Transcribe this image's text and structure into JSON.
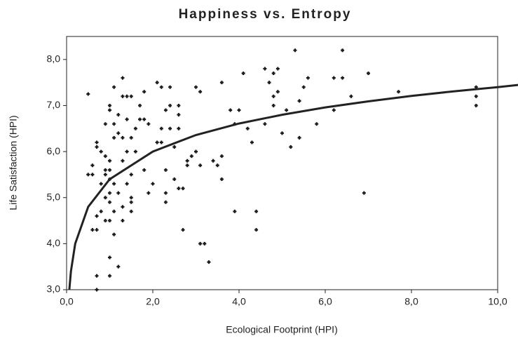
{
  "chart_data": {
    "type": "scatter",
    "title": "Happiness vs. Entropy",
    "x_label": "Ecological Footprint (HPI)",
    "y_label": "Life Satisfaction (HPI)",
    "color": "#1a1a1a",
    "xlim": [
      0,
      10
    ],
    "ylim": [
      3,
      8.5
    ],
    "xticks": [
      {
        "value": 0,
        "label": "0,0"
      },
      {
        "value": 2,
        "label": "2,0"
      },
      {
        "value": 4,
        "label": "4,0"
      },
      {
        "value": 6,
        "label": "6,0"
      },
      {
        "value": 8,
        "label": "8,0"
      },
      {
        "value": 10,
        "label": "10,0"
      }
    ],
    "yticks": [
      {
        "value": 3,
        "label": "3,0"
      },
      {
        "value": 4,
        "label": "4,0"
      },
      {
        "value": 5,
        "label": "5,0"
      },
      {
        "value": 6,
        "label": "6,0"
      },
      {
        "value": 7,
        "label": "7,0"
      },
      {
        "value": 8,
        "label": "8,0"
      }
    ],
    "grid": false,
    "x": [
      0.5,
      0.6,
      0.6,
      0.7,
      0.7,
      0.7,
      0.7,
      0.6,
      0.8,
      0.7,
      0.7,
      0.8,
      0.8,
      0.9,
      0.9,
      0.9,
      0.9,
      0.9,
      0.9,
      1.0,
      1.0,
      1.0,
      1.0,
      1.0,
      1.0,
      1.0,
      1.0,
      1.0,
      1.0,
      1.1,
      1.1,
      1.1,
      1.1,
      1.1,
      1.1,
      1.2,
      1.2,
      1.2,
      1.2,
      1.3,
      1.3,
      1.3,
      1.3,
      1.3,
      1.3,
      1.4,
      1.4,
      1.4,
      1.4,
      1.5,
      1.5,
      1.5,
      1.5,
      1.5,
      1.5,
      1.6,
      1.6,
      1.7,
      1.7,
      1.8,
      1.8,
      1.8,
      1.9,
      1.9,
      2.0,
      2.1,
      2.1,
      2.2,
      2.2,
      2.2,
      2.3,
      2.3,
      2.3,
      2.3,
      2.4,
      2.4,
      2.4,
      2.5,
      2.5,
      2.6,
      2.6,
      2.6,
      2.6,
      2.7,
      2.7,
      2.8,
      2.8,
      2.9,
      3.0,
      3.0,
      3.1,
      3.1,
      3.2,
      3.1,
      3.3,
      3.4,
      3.5,
      3.6,
      3.6,
      3.6,
      3.8,
      3.9,
      3.9,
      4.0,
      4.1,
      4.2,
      4.3,
      4.4,
      4.4,
      4.6,
      4.6,
      4.7,
      4.8,
      4.8,
      4.8,
      4.9,
      4.9,
      5.0,
      5.1,
      5.2,
      5.3,
      5.4,
      5.4,
      5.5,
      5.6,
      5.8,
      6.2,
      6.2,
      6.4,
      6.4,
      6.6,
      6.9,
      7.0,
      7.7,
      9.5,
      9.5,
      9.5,
      0.5
    ],
    "values": [
      5.5,
      5.5,
      5.7,
      6.2,
      6.1,
      4.6,
      4.3,
      4.3,
      4.7,
      3.3,
      3.0,
      6.0,
      5.3,
      5.9,
      6.6,
      5.6,
      5.5,
      5.0,
      4.5,
      5.8,
      5.6,
      5.4,
      5.1,
      4.9,
      4.5,
      3.7,
      3.3,
      6.9,
      7.0,
      7.4,
      6.6,
      6.3,
      5.3,
      4.7,
      4.2,
      6.8,
      6.4,
      3.5,
      5.1,
      7.6,
      7.2,
      6.3,
      5.8,
      4.8,
      4.5,
      7.2,
      6.7,
      6.0,
      5.3,
      7.2,
      6.3,
      5.5,
      5.0,
      4.9,
      4.7,
      6.5,
      6.0,
      7.0,
      6.7,
      7.3,
      5.6,
      6.7,
      5.1,
      6.6,
      5.3,
      6.2,
      7.5,
      7.4,
      6.5,
      6.2,
      6.9,
      5.6,
      5.1,
      4.9,
      7.4,
      7.0,
      6.5,
      5.4,
      6.1,
      7.0,
      6.8,
      6.5,
      5.2,
      5.2,
      4.3,
      5.7,
      5.8,
      5.9,
      7.4,
      6.0,
      7.3,
      4.0,
      4.0,
      5.7,
      3.6,
      5.8,
      5.7,
      7.5,
      5.9,
      5.4,
      6.9,
      6.6,
      4.7,
      6.9,
      7.7,
      6.5,
      6.2,
      4.7,
      4.3,
      7.8,
      6.6,
      7.5,
      7.7,
      7.2,
      7.0,
      7.3,
      7.8,
      6.4,
      6.9,
      6.1,
      8.2,
      6.3,
      7.1,
      7.4,
      7.6,
      6.6,
      6.9,
      7.6,
      8.2,
      7.6,
      7.2,
      5.1,
      7.7,
      7.3,
      7.4,
      7.0,
      7.2,
      7.25
    ],
    "trendline": {
      "x": [
        0.063,
        0.1,
        0.2,
        0.5,
        1,
        2,
        3,
        4,
        5,
        6,
        7,
        8,
        9,
        10,
        10.5
      ],
      "values": [
        3.0,
        3.4,
        4.0,
        4.8,
        5.4,
        6.0,
        6.36,
        6.61,
        6.8,
        6.96,
        7.09,
        7.21,
        7.31,
        7.4,
        7.45
      ]
    }
  }
}
